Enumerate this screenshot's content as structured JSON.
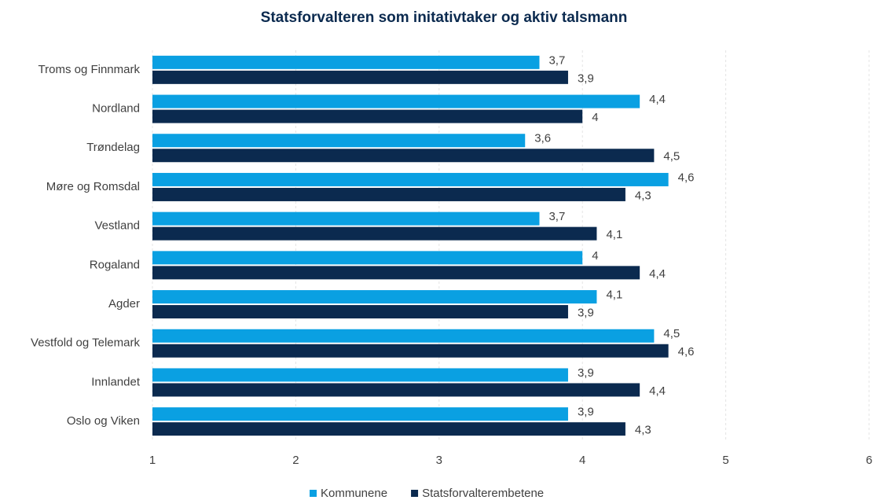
{
  "chart_data": {
    "type": "hbar",
    "title": "Statsforvalteren som initativtaker og aktiv talsmann",
    "categories": [
      "Troms og Finnmark",
      "Nordland",
      "Trøndelag",
      "Møre og Romsdal",
      "Vestland",
      "Rogaland",
      "Agder",
      "Vestfold og Telemark",
      "Innlandet",
      "Oslo og Viken"
    ],
    "series": [
      {
        "name": "Kommunene",
        "color": "#0aa0e2",
        "values": [
          3.7,
          4.4,
          3.6,
          4.6,
          3.7,
          4,
          4.1,
          4.5,
          3.9,
          3.9
        ],
        "value_labels": [
          "3,7",
          "4,4",
          "3,6",
          "4,6",
          "3,7",
          "4",
          "4,1",
          "4,5",
          "3,9",
          "3,9"
        ]
      },
      {
        "name": "Statsforvalterembetene",
        "color": "#0b2a4f",
        "values": [
          3.9,
          4,
          4.5,
          4.3,
          4.1,
          4.4,
          3.9,
          4.6,
          4.4,
          4.3
        ],
        "value_labels": [
          "3,9",
          "4",
          "4,5",
          "4,3",
          "4,1",
          "4,4",
          "3,9",
          "4,6",
          "4,4",
          "4,3"
        ]
      }
    ],
    "xlim": [
      1,
      6
    ],
    "xticks": [
      1,
      2,
      3,
      4,
      5,
      6
    ],
    "grid": true,
    "legend": "bottom"
  }
}
